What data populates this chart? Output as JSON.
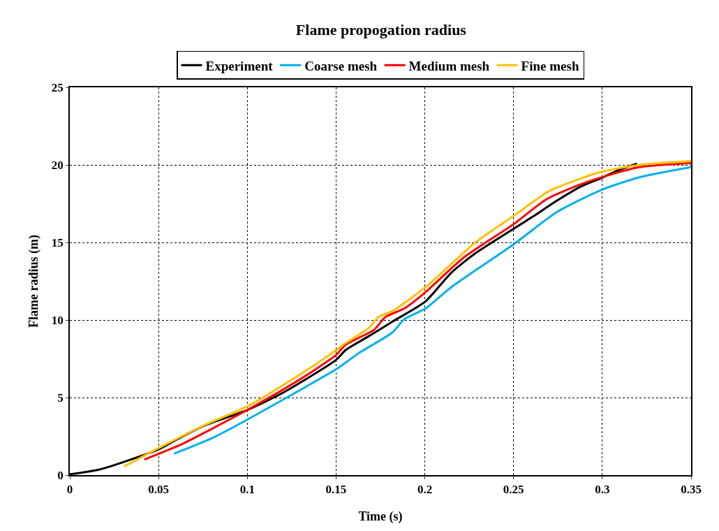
{
  "chart_data": {
    "type": "line",
    "title": "Flame propogation radius",
    "xlabel": "Time (s)",
    "ylabel": "Flame radius (m)",
    "xlim": [
      0,
      0.35
    ],
    "xticks": [
      0,
      0.05,
      0.1,
      0.15,
      0.2,
      0.25,
      0.3,
      0.35
    ],
    "ylim": [
      0,
      25
    ],
    "yticks": [
      0,
      5,
      10,
      15,
      20,
      25
    ],
    "grid": true,
    "legend": "top",
    "marker": "none",
    "line_style": "solid",
    "series": [
      {
        "name": "Experiment",
        "color": "#000000",
        "x": [
          0,
          0.0163,
          0.0296,
          0.05,
          0.0587,
          0.076,
          0.1,
          0.1196,
          0.15,
          0.1553,
          0.1686,
          0.1818,
          0.2004,
          0.2149,
          0.2282,
          0.2503,
          0.2613,
          0.2745,
          0.2878,
          0.3004,
          0.309,
          0.3196
        ],
        "values": [
          0.05,
          0.35,
          0.82,
          1.66,
          2.2,
          3.2,
          4.2,
          5.28,
          7.43,
          8.05,
          8.97,
          9.9,
          11.2,
          13.05,
          14.28,
          15.9,
          16.7,
          17.7,
          18.6,
          19.2,
          19.66,
          20.08
        ]
      },
      {
        "name": "Coarse mesh",
        "color": "#00b0f0",
        "x": [
          0.0587,
          0.081,
          0.1,
          0.1289,
          0.15,
          0.1633,
          0.1818,
          0.1884,
          0.2004,
          0.2149,
          0.2503,
          0.2745,
          0.3004,
          0.3209,
          0.35
        ],
        "values": [
          1.38,
          2.43,
          3.58,
          5.43,
          6.82,
          7.9,
          9.2,
          10.05,
          10.74,
          12.12,
          14.9,
          16.97,
          18.43,
          19.2,
          19.85
        ]
      },
      {
        "name": "Medium mesh",
        "color": "#ff0000",
        "x": [
          0.042,
          0.0626,
          0.1,
          0.1289,
          0.15,
          0.1553,
          0.1712,
          0.1779,
          0.1884,
          0.2004,
          0.2216,
          0.2503,
          0.2679,
          0.2878,
          0.3004,
          0.3209,
          0.35
        ],
        "values": [
          1.0,
          1.97,
          4.2,
          6.12,
          7.74,
          8.4,
          9.35,
          10.2,
          10.74,
          11.8,
          14.0,
          16.2,
          17.74,
          18.74,
          19.23,
          19.85,
          20.12
        ]
      },
      {
        "name": "Fine mesh",
        "color": "#ffc000",
        "x": [
          0.0305,
          0.05,
          0.076,
          0.1,
          0.1289,
          0.15,
          0.1553,
          0.1686,
          0.1739,
          0.1818,
          0.2004,
          0.2282,
          0.2503,
          0.2706,
          0.2878,
          0.3004,
          0.3209,
          0.35
        ],
        "values": [
          0.55,
          1.74,
          3.23,
          4.43,
          6.43,
          8.05,
          8.5,
          9.5,
          10.2,
          10.58,
          12.12,
          14.97,
          16.74,
          18.35,
          19.12,
          19.58,
          20.0,
          20.25
        ]
      }
    ]
  }
}
